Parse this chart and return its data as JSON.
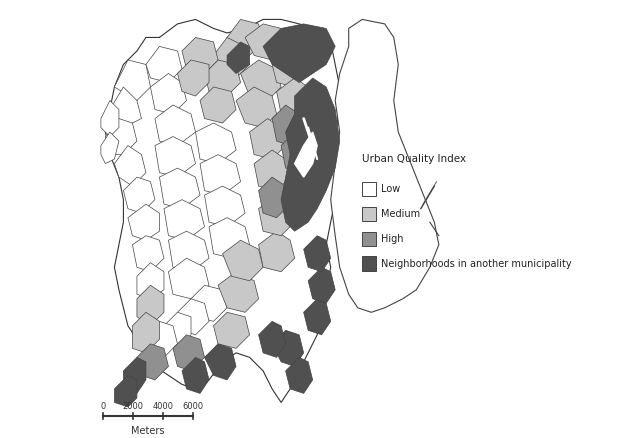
{
  "legend_title": "Urban Quality Index",
  "legend_items": [
    "Low",
    "Medium",
    "High",
    "Neighborhoods in another municipality"
  ],
  "colors": {
    "low": "#ffffff",
    "medium": "#c8c8c8",
    "high": "#909090",
    "other_municipality": "#505050",
    "border": "#444444",
    "background": "#ffffff",
    "thin_border": "#555555"
  },
  "scalebar_ticks": [
    0,
    2000,
    4000,
    6000
  ],
  "scalebar_label": "Meters",
  "figsize": [
    6.25,
    4.38
  ],
  "dpi": 100
}
